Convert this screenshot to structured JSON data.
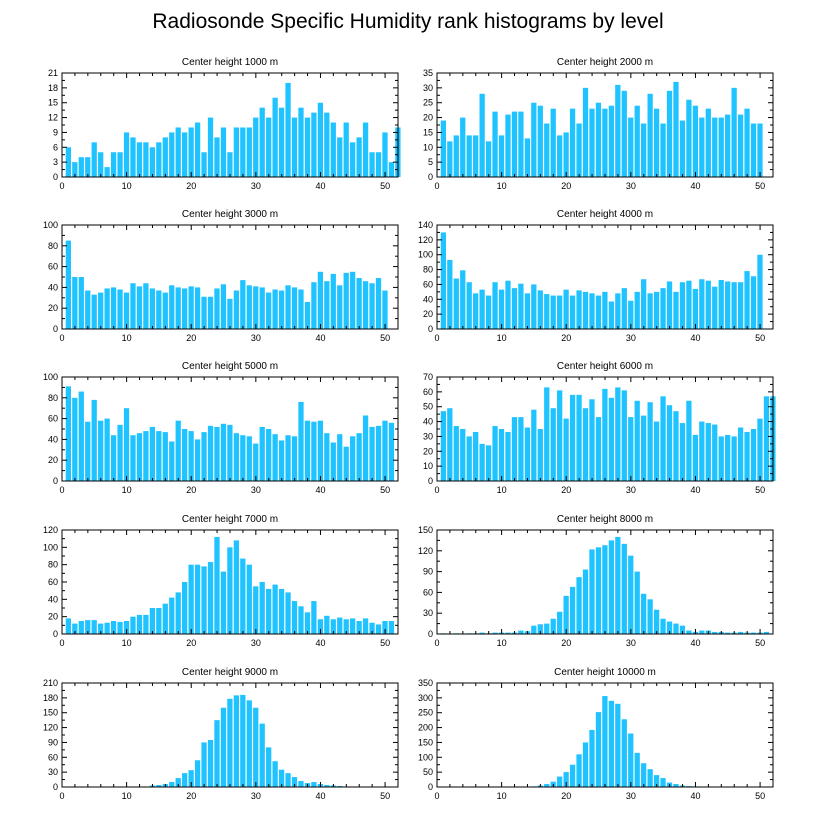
{
  "figure_title": "Radiosonde Specific Humidity rank histograms by level",
  "colors": {
    "bar": "#1ec3ff",
    "axis": "#000000",
    "background": "#ffffff"
  },
  "chart_data": [
    {
      "type": "bar",
      "title": "Center height 1000 m",
      "x_start": 1,
      "xlim": [
        0,
        52
      ],
      "xticks": [
        0,
        10,
        20,
        30,
        40,
        50
      ],
      "ylim": [
        0,
        21
      ],
      "yticks": [
        0,
        3,
        6,
        9,
        12,
        15,
        18,
        21
      ],
      "values": [
        6,
        3,
        4,
        4,
        7,
        5,
        2,
        5,
        5,
        9,
        8,
        7,
        7,
        6,
        7,
        8,
        9,
        10,
        9,
        10,
        11,
        5,
        12,
        8,
        10,
        5,
        10,
        10,
        10,
        12,
        14,
        12,
        16,
        14,
        19,
        12,
        14,
        12,
        13,
        15,
        13,
        11,
        8,
        11,
        7,
        8,
        11,
        5,
        5,
        9,
        3,
        10
      ]
    },
    {
      "type": "bar",
      "title": "Center height 2000 m",
      "x_start": 1,
      "xlim": [
        0,
        52
      ],
      "xticks": [
        0,
        10,
        20,
        30,
        40,
        50
      ],
      "ylim": [
        0,
        35
      ],
      "yticks": [
        0,
        5,
        10,
        15,
        20,
        25,
        30,
        35
      ],
      "values": [
        19,
        12,
        14,
        20,
        14,
        14,
        28,
        12,
        22,
        14,
        21,
        22,
        22,
        13,
        25,
        24,
        18,
        23,
        14,
        15,
        23,
        18,
        30,
        23,
        25,
        23,
        24,
        31,
        29,
        20,
        24,
        18,
        28,
        23,
        18,
        29,
        32,
        19,
        26,
        24,
        20,
        23,
        20,
        20,
        21,
        30,
        21,
        23,
        18,
        18
      ]
    },
    {
      "type": "bar",
      "title": "Center height 3000 m",
      "x_start": 1,
      "xlim": [
        0,
        52
      ],
      "xticks": [
        0,
        10,
        20,
        30,
        40,
        50
      ],
      "ylim": [
        0,
        100
      ],
      "yticks": [
        0,
        20,
        40,
        60,
        80,
        100
      ],
      "values": [
        85,
        50,
        50,
        37,
        33,
        35,
        39,
        40,
        38,
        35,
        44,
        41,
        44,
        39,
        37,
        35,
        42,
        40,
        39,
        41,
        40,
        31,
        31,
        39,
        43,
        29,
        37,
        47,
        42,
        41,
        40,
        35,
        38,
        37,
        42,
        40,
        38,
        26,
        45,
        55,
        46,
        53,
        42,
        54,
        55,
        49,
        46,
        44,
        49,
        37
      ]
    },
    {
      "type": "bar",
      "title": "Center height 4000 m",
      "x_start": 1,
      "xlim": [
        0,
        52
      ],
      "xticks": [
        0,
        10,
        20,
        30,
        40,
        50
      ],
      "ylim": [
        0,
        140
      ],
      "yticks": [
        0,
        20,
        40,
        60,
        80,
        100,
        120,
        140
      ],
      "values": [
        130,
        93,
        68,
        79,
        63,
        48,
        53,
        45,
        63,
        53,
        65,
        55,
        61,
        48,
        60,
        52,
        47,
        45,
        45,
        53,
        45,
        52,
        50,
        48,
        45,
        50,
        37,
        48,
        55,
        38,
        50,
        67,
        48,
        50,
        55,
        64,
        50,
        63,
        65,
        54,
        67,
        65,
        57,
        66,
        64,
        63,
        63,
        78,
        71,
        100
      ]
    },
    {
      "type": "bar",
      "title": "Center height 5000 m",
      "x_start": 1,
      "xlim": [
        0,
        52
      ],
      "xticks": [
        0,
        10,
        20,
        30,
        40,
        50
      ],
      "ylim": [
        0,
        100
      ],
      "yticks": [
        0,
        20,
        40,
        60,
        80,
        100
      ],
      "values": [
        91,
        80,
        86,
        57,
        78,
        58,
        60,
        44,
        54,
        70,
        44,
        46,
        48,
        52,
        48,
        47,
        38,
        58,
        50,
        48,
        40,
        47,
        53,
        52,
        55,
        54,
        46,
        44,
        43,
        36,
        52,
        50,
        45,
        39,
        44,
        43,
        76,
        58,
        57,
        58,
        46,
        37,
        45,
        33,
        43,
        46,
        63,
        52,
        53,
        58,
        56
      ]
    },
    {
      "type": "bar",
      "title": "Center height 6000 m",
      "x_start": 1,
      "xlim": [
        0,
        52
      ],
      "xticks": [
        0,
        10,
        20,
        30,
        40,
        50
      ],
      "ylim": [
        0,
        70
      ],
      "yticks": [
        0,
        10,
        20,
        30,
        40,
        50,
        60,
        70
      ],
      "values": [
        47,
        49,
        37,
        35,
        30,
        33,
        25,
        24,
        37,
        35,
        33,
        43,
        43,
        36,
        48,
        35,
        63,
        49,
        61,
        42,
        58,
        58,
        49,
        55,
        43,
        62,
        56,
        63,
        61,
        43,
        54,
        44,
        53,
        40,
        57,
        51,
        47,
        39,
        54,
        31,
        40,
        39,
        38,
        30,
        31,
        30,
        36,
        33,
        35,
        42,
        57,
        57
      ]
    },
    {
      "type": "bar",
      "title": "Center height 7000 m",
      "x_start": 1,
      "xlim": [
        0,
        52
      ],
      "xticks": [
        0,
        10,
        20,
        30,
        40,
        50
      ],
      "ylim": [
        0,
        120
      ],
      "yticks": [
        0,
        20,
        40,
        60,
        80,
        100,
        120
      ],
      "values": [
        18,
        12,
        15,
        16,
        16,
        12,
        13,
        15,
        14,
        15,
        20,
        22,
        22,
        30,
        30,
        35,
        42,
        48,
        60,
        80,
        80,
        78,
        83,
        112,
        72,
        100,
        108,
        87,
        80,
        55,
        60,
        52,
        57,
        52,
        48,
        38,
        32,
        25,
        38,
        17,
        21,
        17,
        19,
        17,
        18,
        15,
        18,
        13,
        11,
        15,
        15
      ]
    },
    {
      "type": "bar",
      "title": "Center height 8000 m",
      "x_start": 1,
      "xlim": [
        0,
        52
      ],
      "xticks": [
        0,
        10,
        20,
        30,
        40,
        50
      ],
      "ylim": [
        0,
        150
      ],
      "yticks": [
        0,
        30,
        60,
        90,
        120,
        150
      ],
      "values": [
        1,
        0,
        1,
        0,
        1,
        1,
        2,
        1,
        2,
        2,
        2,
        2,
        5,
        4,
        12,
        14,
        15,
        22,
        32,
        55,
        68,
        82,
        93,
        122,
        125,
        128,
        135,
        140,
        130,
        113,
        90,
        58,
        50,
        35,
        22,
        18,
        15,
        12,
        5,
        3,
        5,
        5,
        3,
        3,
        2,
        2,
        3,
        2,
        2,
        2,
        3
      ]
    },
    {
      "type": "bar",
      "title": "Center height 9000 m",
      "x_start": 1,
      "xlim": [
        0,
        52
      ],
      "xticks": [
        0,
        10,
        20,
        30,
        40,
        50
      ],
      "ylim": [
        0,
        210
      ],
      "yticks": [
        0,
        30,
        60,
        90,
        120,
        150,
        180,
        210
      ],
      "values": [
        0,
        0,
        0,
        0,
        0,
        0,
        0,
        0,
        0,
        1,
        1,
        1,
        1,
        3,
        4,
        6,
        10,
        18,
        28,
        34,
        54,
        90,
        95,
        135,
        160,
        178,
        185,
        186,
        175,
        160,
        128,
        80,
        52,
        35,
        28,
        20,
        12,
        8,
        10,
        6,
        4,
        3,
        2,
        1,
        1,
        1,
        0,
        0,
        0,
        0,
        0
      ]
    },
    {
      "type": "bar",
      "title": "Center height 10000 m",
      "x_start": 1,
      "xlim": [
        0,
        52
      ],
      "xticks": [
        0,
        10,
        20,
        30,
        40,
        50
      ],
      "ylim": [
        0,
        350
      ],
      "yticks": [
        0,
        50,
        100,
        150,
        200,
        250,
        300,
        350
      ],
      "values": [
        0,
        0,
        0,
        0,
        0,
        0,
        0,
        0,
        0,
        0,
        0,
        0,
        0,
        1,
        2,
        5,
        10,
        18,
        35,
        50,
        75,
        110,
        150,
        192,
        252,
        306,
        290,
        280,
        228,
        180,
        115,
        80,
        60,
        40,
        30,
        15,
        10,
        5,
        3,
        2,
        1,
        1,
        1,
        0,
        0,
        0,
        0,
        0,
        0,
        0,
        0
      ]
    }
  ]
}
